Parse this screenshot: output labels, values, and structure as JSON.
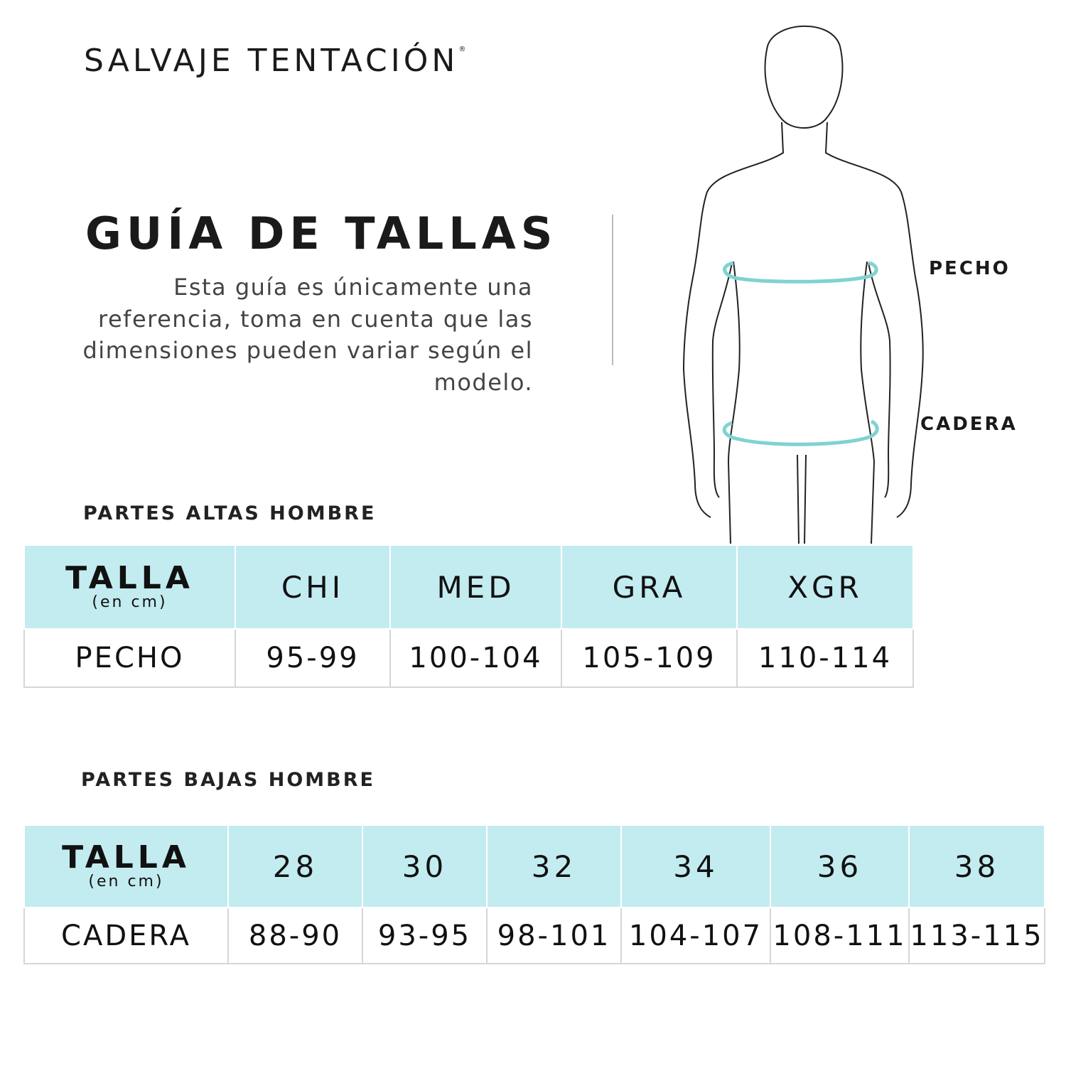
{
  "brand": {
    "name": "SALVAJE TENTACIÓN",
    "registered_mark": "®"
  },
  "title": "GUÍA DE TALLAS",
  "description": "Esta guía es únicamente una referencia, toma en cuenta que las dimensiones pueden variar según el modelo.",
  "figure": {
    "labels": {
      "chest": "PECHO",
      "hip": "CADERA"
    },
    "ring_color": "#7fd3d2"
  },
  "colors": {
    "header_bg": "#c3ecf1",
    "border": "#d6d6d6"
  },
  "tops": {
    "section_title": "PARTES ALTAS HOMBRE",
    "header_label": "TALLA",
    "header_unit": "(en cm)",
    "sizes": [
      "CHI",
      "MED",
      "GRA",
      "XGR"
    ],
    "row_label": "PECHO",
    "values": [
      "95-99",
      "100-104",
      "105-109",
      "110-114"
    ]
  },
  "bottoms": {
    "section_title": "PARTES BAJAS HOMBRE",
    "header_label": "TALLA",
    "header_unit": "(en cm)",
    "sizes": [
      "28",
      "30",
      "32",
      "34",
      "36",
      "38"
    ],
    "row_label": "CADERA",
    "values": [
      "88-90",
      "93-95",
      "98-101",
      "104-107",
      "108-111",
      "113-115"
    ]
  }
}
